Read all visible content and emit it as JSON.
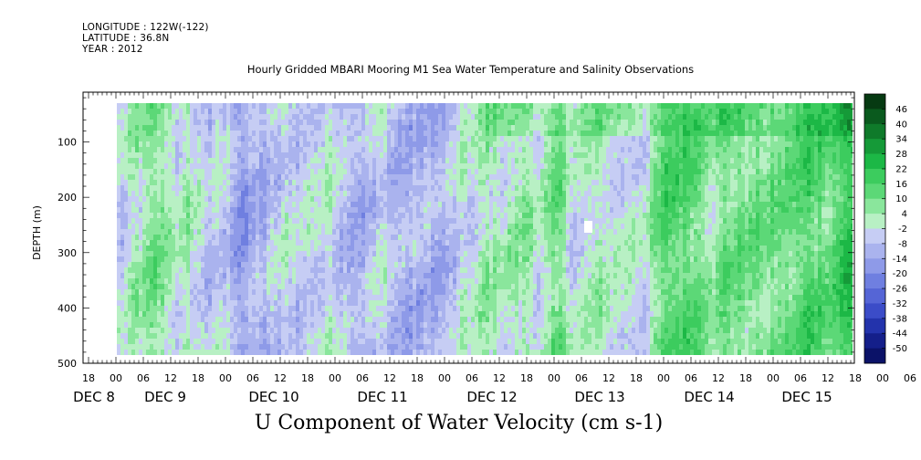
{
  "header": {
    "longitude": "LONGITUDE : 122W(-122)",
    "latitude": "LATITUDE : 36.8N",
    "year": "YEAR : 2012"
  },
  "chart_data": {
    "type": "heatmap",
    "title": "Hourly Gridded MBARI Mooring M1 Sea Water Temperature and Salinity Observations",
    "xlabel": "U Component of Water Velocity (cm s-1)",
    "ylabel": "DEPTH (m)",
    "ylim": [
      500,
      10
    ],
    "yticks": [
      100,
      200,
      300,
      400,
      500
    ],
    "y_reversed": true,
    "x_hour_labels": [
      "18",
      "00",
      "06",
      "12",
      "18",
      "00",
      "06",
      "12",
      "18",
      "00",
      "06",
      "12",
      "18",
      "00",
      "06",
      "12",
      "18",
      "00",
      "06",
      "12",
      "18",
      "00",
      "06",
      "12",
      "18",
      "00",
      "06",
      "12",
      "18",
      "00",
      "06",
      "12",
      "18",
      "00",
      "06",
      "12",
      "18"
    ],
    "x_day_labels": [
      "DEC 8",
      "DEC 9",
      "DEC 10",
      "DEC 11",
      "DEC 12",
      "DEC 13",
      "DEC 14",
      "DEC 15"
    ],
    "colorbar_levels": [
      "46",
      "40",
      "34",
      "28",
      "22",
      "16",
      "10",
      "4",
      "-2",
      "-8",
      "-14",
      "-20",
      "-26",
      "-32",
      "-38",
      "-44",
      "-50"
    ],
    "colorbar_colors": [
      "#063a12",
      "#0a5a1e",
      "#0f7a2a",
      "#159a38",
      "#1cb846",
      "#3ccc5e",
      "#5cd877",
      "#8ae69c",
      "#b8f0c4",
      "#c6cdf4",
      "#aab3ee",
      "#8e9ae8",
      "#6f7fe0",
      "#5565d6",
      "#3b4cc8",
      "#2333ac",
      "#141f8a",
      "#0b1268"
    ],
    "field_summary": "Alternating bands: weak westward (blue, -2 to -20) flow prevalent Dec 8 to mid Dec 12, strong eastward (green, 4 to 28) flow dominant Dec 12 to Dec 15 at most depths."
  }
}
